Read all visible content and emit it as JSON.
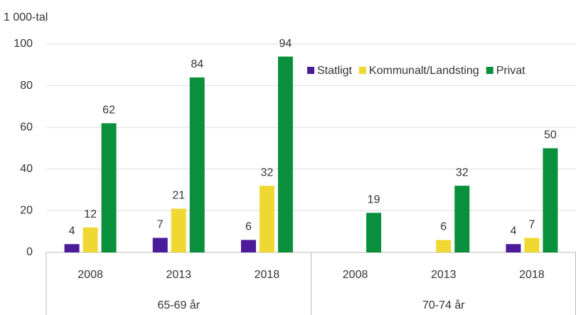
{
  "chart_data": {
    "type": "bar",
    "ylabel": "1 000-tal",
    "categories": [
      "2008",
      "2013",
      "2018",
      "2008",
      "2013",
      "2018"
    ],
    "groups": [
      "65-69 år",
      "70-74 år"
    ],
    "series": [
      {
        "name": "Statligt",
        "color": "#4b1b9a",
        "values": [
          4,
          7,
          6,
          null,
          null,
          4
        ]
      },
      {
        "name": "Kommunalt/Landsting",
        "color": "#f0d833",
        "values": [
          12,
          21,
          32,
          null,
          6,
          7
        ]
      },
      {
        "name": "Privat",
        "color": "#0a8f3c",
        "values": [
          62,
          84,
          94,
          19,
          32,
          50
        ]
      }
    ],
    "ylim": [
      0,
      100
    ],
    "yticks": [
      0,
      20,
      40,
      60,
      80,
      100
    ],
    "grid": true,
    "legend": "top-right"
  }
}
